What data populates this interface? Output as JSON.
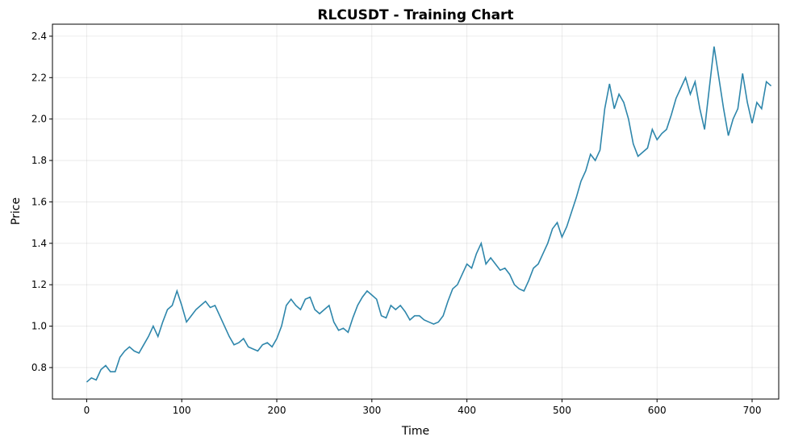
{
  "chart_data": {
    "type": "line",
    "title": "RLCUSDT - Training Chart",
    "x_label": "Time",
    "y_label": "Price",
    "x": [
      0,
      5,
      10,
      15,
      20,
      25,
      30,
      35,
      40,
      45,
      50,
      55,
      60,
      65,
      70,
      75,
      80,
      85,
      90,
      95,
      100,
      105,
      110,
      115,
      120,
      125,
      130,
      135,
      140,
      145,
      150,
      155,
      160,
      165,
      170,
      175,
      180,
      185,
      190,
      195,
      200,
      205,
      210,
      215,
      220,
      225,
      230,
      235,
      240,
      245,
      250,
      255,
      260,
      265,
      270,
      275,
      280,
      285,
      290,
      295,
      300,
      305,
      310,
      315,
      320,
      325,
      330,
      335,
      340,
      345,
      350,
      355,
      360,
      365,
      370,
      375,
      380,
      385,
      390,
      395,
      400,
      405,
      410,
      415,
      420,
      425,
      430,
      435,
      440,
      445,
      450,
      455,
      460,
      465,
      470,
      475,
      480,
      485,
      490,
      495,
      500,
      505,
      510,
      515,
      520,
      525,
      530,
      535,
      540,
      545,
      550,
      555,
      560,
      565,
      570,
      575,
      580,
      585,
      590,
      595,
      600,
      605,
      610,
      615,
      620,
      625,
      630,
      635,
      640,
      645,
      650,
      655,
      660,
      665,
      670,
      675,
      680,
      685,
      690,
      695,
      700,
      705,
      710,
      715,
      720
    ],
    "series": [
      {
        "name": "Price",
        "color": "#2e86ab",
        "values": [
          0.73,
          0.75,
          0.74,
          0.79,
          0.81,
          0.78,
          0.78,
          0.85,
          0.88,
          0.9,
          0.88,
          0.87,
          0.91,
          0.95,
          1.0,
          0.95,
          1.02,
          1.08,
          1.1,
          1.17,
          1.1,
          1.02,
          1.05,
          1.08,
          1.1,
          1.12,
          1.09,
          1.1,
          1.05,
          1.0,
          0.95,
          0.91,
          0.92,
          0.94,
          0.9,
          0.89,
          0.88,
          0.91,
          0.92,
          0.9,
          0.94,
          1.0,
          1.1,
          1.13,
          1.1,
          1.08,
          1.13,
          1.14,
          1.08,
          1.06,
          1.08,
          1.1,
          1.02,
          0.98,
          0.99,
          0.97,
          1.04,
          1.1,
          1.14,
          1.17,
          1.15,
          1.13,
          1.05,
          1.04,
          1.1,
          1.08,
          1.1,
          1.07,
          1.03,
          1.05,
          1.05,
          1.03,
          1.02,
          1.01,
          1.02,
          1.05,
          1.12,
          1.18,
          1.2,
          1.25,
          1.3,
          1.28,
          1.35,
          1.4,
          1.3,
          1.33,
          1.3,
          1.27,
          1.28,
          1.25,
          1.2,
          1.18,
          1.17,
          1.22,
          1.28,
          1.3,
          1.35,
          1.4,
          1.47,
          1.5,
          1.43,
          1.48,
          1.55,
          1.62,
          1.7,
          1.75,
          1.83,
          1.8,
          1.85,
          2.05,
          2.17,
          2.05,
          2.12,
          2.08,
          2.0,
          1.88,
          1.82,
          1.84,
          1.86,
          1.95,
          1.9,
          1.93,
          1.95,
          2.02,
          2.1,
          2.15,
          2.2,
          2.12,
          2.18,
          2.05,
          1.95,
          2.15,
          2.35,
          2.2,
          2.05,
          1.92,
          2.0,
          2.05,
          2.22,
          2.08,
          1.98,
          2.08,
          2.05,
          2.18,
          2.16
        ]
      }
    ],
    "xlim": [
      -36,
      728
    ],
    "xticks": [
      0,
      100,
      200,
      300,
      400,
      500,
      600,
      700
    ],
    "ylim": [
      0.648,
      2.458
    ],
    "yticks": [
      0.8,
      {
        "value": 1,
        "label": "1.0"
      },
      1.2,
      1.4,
      1.6,
      1.8,
      {
        "value": 2,
        "label": "2.0"
      },
      2.2,
      2.4
    ],
    "grid": true
  }
}
